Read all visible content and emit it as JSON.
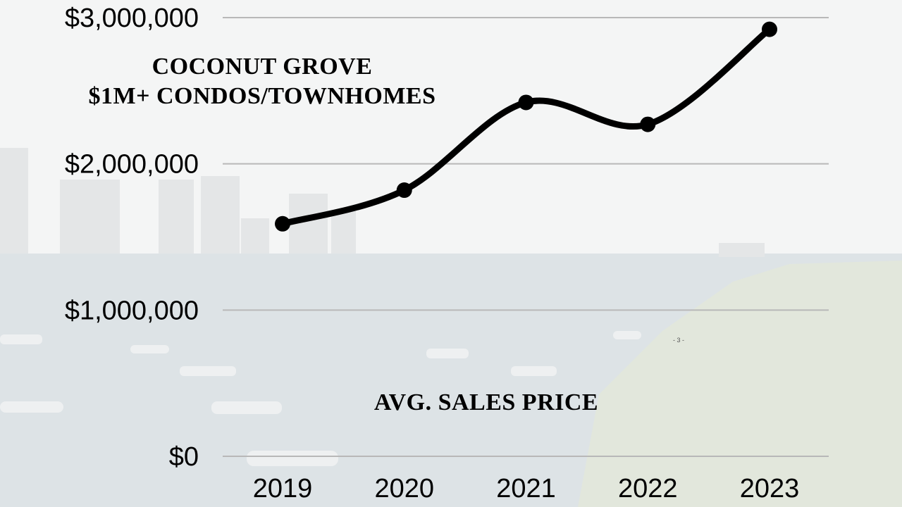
{
  "title_lines": [
    "COCONUT GROVE",
    "$1M+ CONDOS/TOWNHOMES"
  ],
  "caption": "AVG. SALES PRICE",
  "page_marker": "- 3 -",
  "colors": {
    "line": "#000000",
    "grid": "#b8b8b8",
    "sky": "#f2f3f3",
    "water": "#d9dfe2",
    "trees": "#dfe4d9"
  },
  "chart_data": {
    "type": "line",
    "title": "COCONUT GROVE $1M+ CONDOS/TOWNHOMES",
    "xlabel": "AVG. SALES PRICE",
    "ylabel": "",
    "x": [
      "2019",
      "2020",
      "2021",
      "2022",
      "2023"
    ],
    "series": [
      {
        "values": [
          1590000,
          1820000,
          2420000,
          2270000,
          2920000
        ]
      }
    ],
    "ylim": [
      0,
      3000000
    ],
    "yticks": [
      0,
      1000000,
      2000000,
      3000000
    ],
    "ytick_labels": [
      "$0",
      "$1,000,000",
      "$2,000,000",
      "$3,000,000"
    ],
    "grid": true,
    "legend": "none"
  }
}
